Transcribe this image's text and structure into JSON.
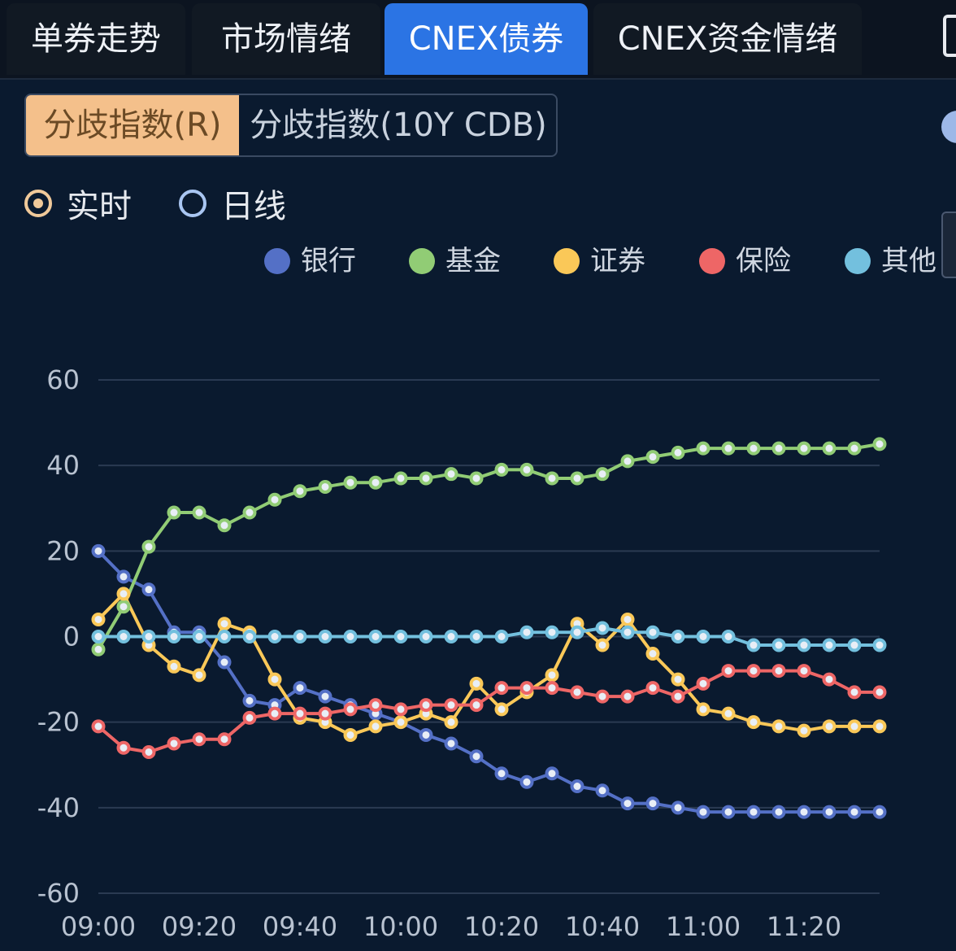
{
  "tabs": [
    {
      "label": "单券走势",
      "active": false
    },
    {
      "label": "市场情绪",
      "active": false
    },
    {
      "label": "CNEX债券",
      "active": true
    },
    {
      "label": "CNEX资金情绪",
      "active": false
    }
  ],
  "segments": [
    {
      "label": "分歧指数(R)",
      "active": true
    },
    {
      "label": "分歧指数(10Y CDB)",
      "active": false
    }
  ],
  "radios": [
    {
      "label": "实时",
      "selected": true
    },
    {
      "label": "日线",
      "selected": false
    }
  ],
  "colors": {
    "accent_tab": "#2b74e4",
    "segment_active": "#f4c08b"
  },
  "chart_data": {
    "type": "line",
    "title": "",
    "xlabel": "",
    "ylabel": "",
    "ylim": [
      -60,
      60
    ],
    "yticks": [
      60,
      40,
      20,
      0,
      -20,
      -40,
      -60
    ],
    "xtick_labels": [
      "09:00",
      "09:20",
      "09:40",
      "10:00",
      "10:20",
      "10:40",
      "11:00",
      "11:20"
    ],
    "x": [
      "09:00",
      "09:05",
      "09:10",
      "09:15",
      "09:20",
      "09:25",
      "09:30",
      "09:35",
      "09:40",
      "09:45",
      "09:50",
      "09:55",
      "10:00",
      "10:05",
      "10:10",
      "10:15",
      "10:20",
      "10:25",
      "10:30",
      "10:35",
      "10:40",
      "10:45",
      "10:50",
      "10:55",
      "11:00",
      "11:05",
      "11:10",
      "11:15",
      "11:20",
      "11:25",
      "11:30",
      "11:35"
    ],
    "grid": true,
    "legend_position": "top",
    "series": [
      {
        "name": "银行",
        "color": "#5470c6",
        "values": [
          20,
          14,
          11,
          1,
          1,
          -6,
          -15,
          -16,
          -12,
          -14,
          -16,
          -18,
          -20,
          -23,
          -25,
          -28,
          -32,
          -34,
          -32,
          -35,
          -36,
          -39,
          -39,
          -40,
          -41,
          -41,
          -41,
          -41,
          -41,
          -41,
          -41,
          -41
        ]
      },
      {
        "name": "基金",
        "color": "#91cc75",
        "values": [
          -3,
          7,
          21,
          29,
          29,
          26,
          29,
          32,
          34,
          35,
          36,
          36,
          37,
          37,
          38,
          37,
          39,
          39,
          37,
          37,
          38,
          41,
          42,
          43,
          44,
          44,
          44,
          44,
          44,
          44,
          44,
          45
        ]
      },
      {
        "name": "证券",
        "color": "#fac858",
        "values": [
          4,
          10,
          -2,
          -7,
          -9,
          3,
          1,
          -10,
          -19,
          -20,
          -23,
          -21,
          -20,
          -18,
          -20,
          -11,
          -17,
          -13,
          -9,
          3,
          -2,
          4,
          -4,
          -10,
          -17,
          -18,
          -20,
          -21,
          -22,
          -21,
          -21,
          -21
        ]
      },
      {
        "name": "保险",
        "color": "#ee6666",
        "values": [
          -21,
          -26,
          -27,
          -25,
          -24,
          -24,
          -19,
          -18,
          -18,
          -18,
          -17,
          -16,
          -17,
          -16,
          -16,
          -16,
          -12,
          -12,
          -12,
          -13,
          -14,
          -14,
          -12,
          -14,
          -11,
          -8,
          -8,
          -8,
          -8,
          -10,
          -13,
          -13
        ]
      },
      {
        "name": "其他",
        "color": "#73c0de",
        "values": [
          0,
          0,
          0,
          0,
          0,
          0,
          0,
          0,
          0,
          0,
          0,
          0,
          0,
          0,
          0,
          0,
          0,
          1,
          1,
          1,
          2,
          1,
          1,
          0,
          0,
          0,
          -2,
          -2,
          -2,
          -2,
          -2,
          -2
        ]
      }
    ]
  }
}
